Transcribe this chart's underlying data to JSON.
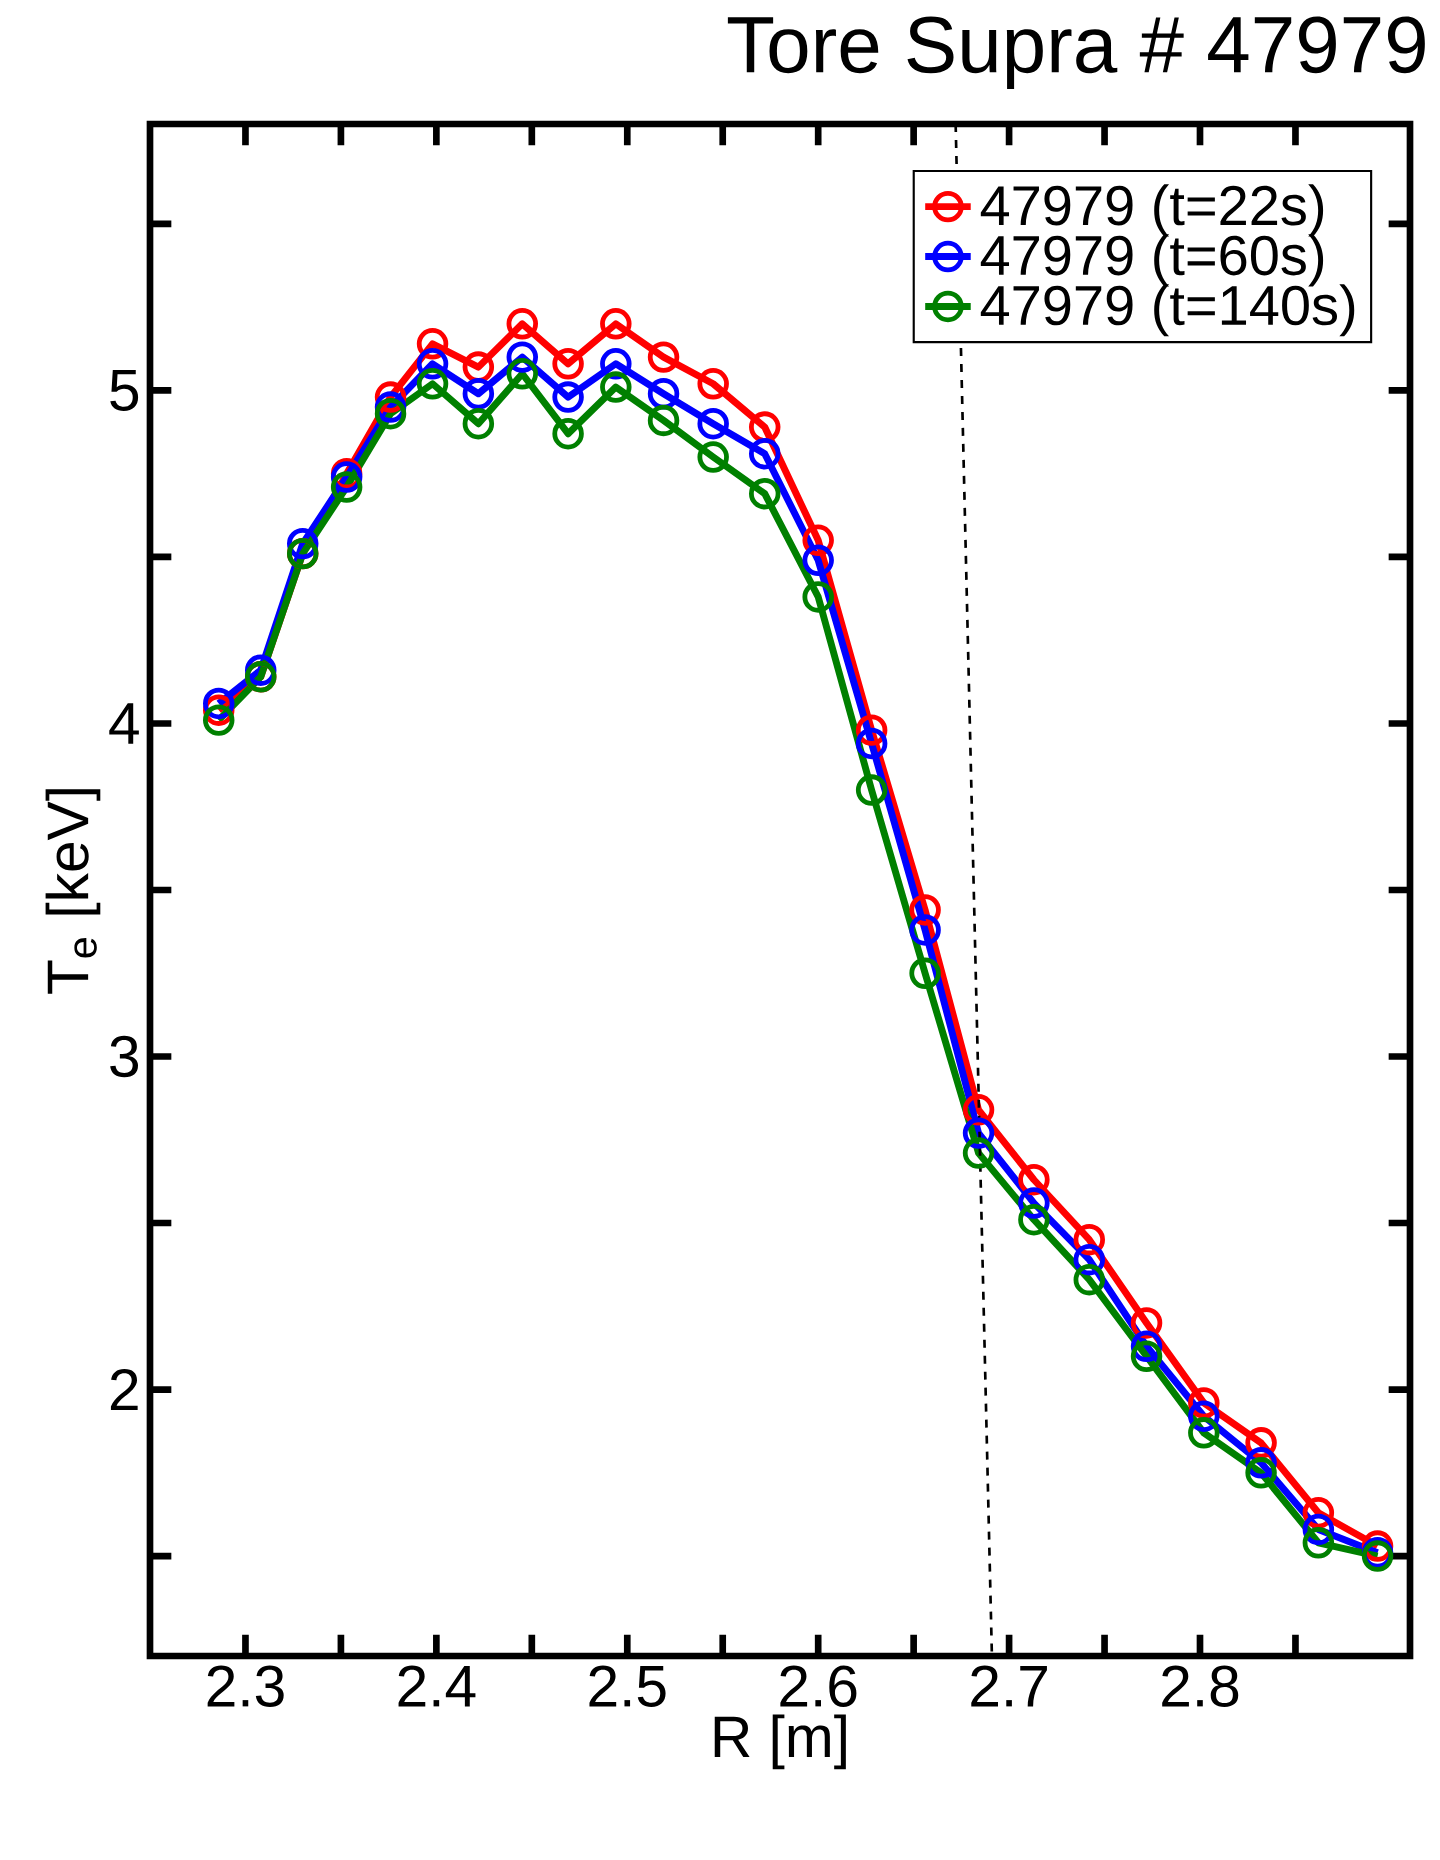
{
  "chart_data": {
    "type": "line",
    "title": "Tore Supra # 47979",
    "xlabel": "R [m]",
    "ylabel": "T$_{e}$ [keV]",
    "xlim": [
      2.25,
      2.91
    ],
    "ylim": [
      1.2,
      5.8
    ],
    "xticks": [
      2.3,
      {
        "value": 2.35,
        "label": null
      },
      2.4,
      {
        "value": 2.45,
        "label": null
      },
      2.5,
      {
        "value": 2.55,
        "label": null
      },
      2.6,
      {
        "value": 2.65,
        "label": null
      },
      2.7,
      {
        "value": 2.75,
        "label": null
      },
      2.8,
      {
        "value": 2.85,
        "label": null
      }
    ],
    "yticks": [
      {
        "value": 1.5,
        "label": null
      },
      2,
      {
        "value": 2.5,
        "label": null
      },
      3,
      {
        "value": 3.5,
        "label": null
      },
      4,
      {
        "value": 4.5,
        "label": null
      },
      5,
      {
        "value": 5.5,
        "label": null
      }
    ],
    "x": [
      2.286,
      2.308,
      2.33,
      2.353,
      2.376,
      2.398,
      2.422,
      2.445,
      2.469,
      2.494,
      2.519,
      2.545,
      2.572,
      2.6,
      2.628,
      2.656,
      2.684,
      2.713,
      2.742,
      2.772,
      2.802,
      2.832,
      2.862,
      2.893
    ],
    "legend": "top right",
    "marker": "circle",
    "line_style": "solid",
    "series": [
      {
        "name": "47979 (t=22s)",
        "color": "#ff0000",
        "values": [
          4.04,
          4.14,
          4.51,
          4.75,
          4.98,
          5.14,
          5.07,
          5.2,
          5.08,
          5.2,
          5.1,
          5.02,
          4.89,
          4.55,
          3.98,
          3.44,
          2.84,
          2.63,
          2.45,
          2.2,
          1.96,
          1.84,
          1.63,
          1.53
        ]
      },
      {
        "name": "47979 (t=60s)",
        "color": "#0000ff",
        "values": [
          4.06,
          4.16,
          4.54,
          4.74,
          4.95,
          5.08,
          4.99,
          5.1,
          4.98,
          5.08,
          4.99,
          4.9,
          4.81,
          4.49,
          3.94,
          3.38,
          2.77,
          2.56,
          2.39,
          2.13,
          1.92,
          1.78,
          1.58,
          1.51
        ]
      },
      {
        "name": "47979 (t=140s)",
        "color": "#008000",
        "values": [
          4.01,
          4.14,
          4.51,
          4.71,
          4.93,
          5.02,
          4.9,
          5.05,
          4.87,
          5.01,
          4.91,
          4.8,
          4.69,
          4.38,
          3.8,
          3.25,
          2.71,
          2.51,
          2.33,
          2.1,
          1.87,
          1.75,
          1.54,
          1.5
        ]
      },
      {
        "type": "line",
        "color": "#000000",
        "line_style": "dashed",
        "marker": "none",
        "x": [
          2.672,
          2.691
        ],
        "values": [
          5.8,
          1.2
        ]
      }
    ]
  }
}
